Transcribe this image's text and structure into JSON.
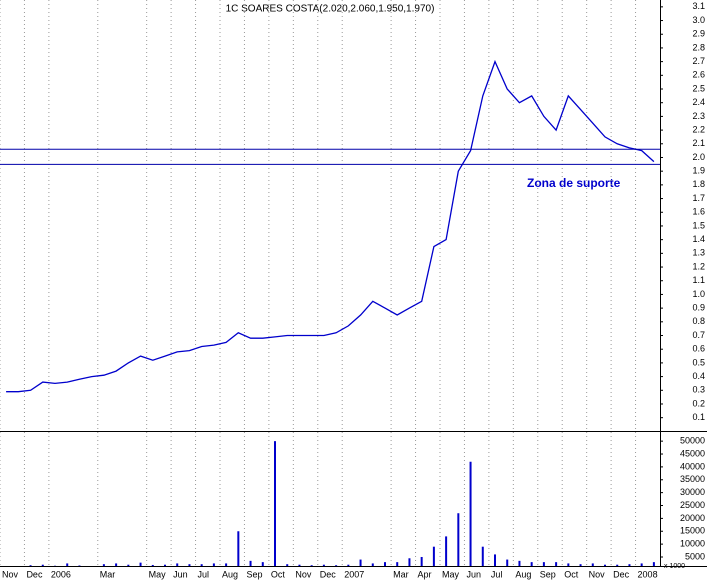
{
  "chart_data": [
    {
      "type": "line",
      "title": "1C SOARES COSTA(2.020,2.060,1.950,1.970)",
      "color": "#0000cc",
      "categories": [
        "Nov",
        null,
        "Dec",
        null,
        "2006",
        null,
        null,
        null,
        "Mar",
        null,
        null,
        null,
        "May",
        null,
        "Jun",
        null,
        "Jul",
        null,
        "Aug",
        null,
        "Sep",
        null,
        "Oct",
        null,
        "Nov",
        null,
        "Dec",
        null,
        "2007",
        null,
        null,
        null,
        "Mar",
        null,
        "Apr",
        null,
        "May",
        null,
        "Jun",
        null,
        "Jul",
        null,
        "Aug",
        null,
        "Sep",
        null,
        "Oct",
        null,
        "Nov",
        null,
        "Dec",
        null,
        "2008",
        null
      ],
      "values": [
        0.29,
        0.29,
        0.3,
        0.36,
        0.35,
        0.36,
        0.38,
        0.4,
        0.41,
        0.44,
        0.5,
        0.55,
        0.52,
        0.55,
        0.58,
        0.59,
        0.62,
        0.63,
        0.65,
        0.72,
        0.68,
        0.68,
        0.69,
        0.7,
        0.7,
        0.7,
        0.7,
        0.72,
        0.77,
        0.85,
        0.95,
        0.9,
        0.85,
        0.9,
        0.95,
        1.35,
        1.4,
        1.9,
        2.05,
        2.45,
        2.7,
        2.5,
        2.4,
        2.45,
        2.3,
        2.2,
        2.45,
        2.35,
        2.25,
        2.15,
        2.1,
        2.07,
        2.05,
        1.97
      ],
      "ylim": [
        0.01,
        3.15
      ],
      "yticks": [
        0.1,
        0.2,
        0.3,
        0.4,
        0.5,
        0.6,
        0.7,
        0.8,
        0.9,
        {
          "value": 1,
          "label": "1.0"
        },
        1.1,
        1.2,
        1.3,
        1.4,
        1.5,
        1.6,
        1.7,
        1.8,
        1.9,
        {
          "value": 2,
          "label": "2.0"
        },
        2.1,
        2.2,
        2.3,
        2.4,
        2.5,
        2.6,
        2.7,
        2.8,
        2.9,
        {
          "value": 3,
          "label": "3.0"
        },
        3.1
      ],
      "support_lines": [
        2.06,
        1.95
      ],
      "support_color": "#0000aa",
      "annotation": "Zona de suporte"
    },
    {
      "type": "bar",
      "color": "#0000cc",
      "unit_label": "x 1000",
      "values": [
        1500,
        1500,
        1800,
        2000,
        1600,
        2500,
        1700,
        1500,
        2200,
        2500,
        2000,
        2800,
        1900,
        2000,
        2500,
        2200,
        2200,
        2500,
        2500,
        15000,
        3500,
        3000,
        50000,
        2200,
        2000,
        1800,
        2000,
        1800,
        2000,
        4000,
        2500,
        3000,
        3000,
        4500,
        5000,
        9000,
        13000,
        22000,
        42000,
        9000,
        6000,
        4000,
        3500,
        3000,
        3000,
        3000,
        2500,
        2200,
        2500,
        2000,
        2000,
        2200,
        2500,
        3000
      ],
      "ylim": [
        1500,
        52000
      ],
      "yticks": [
        5000,
        10000,
        15000,
        20000,
        25000,
        30000,
        35000,
        40000,
        45000,
        50000
      ]
    }
  ]
}
